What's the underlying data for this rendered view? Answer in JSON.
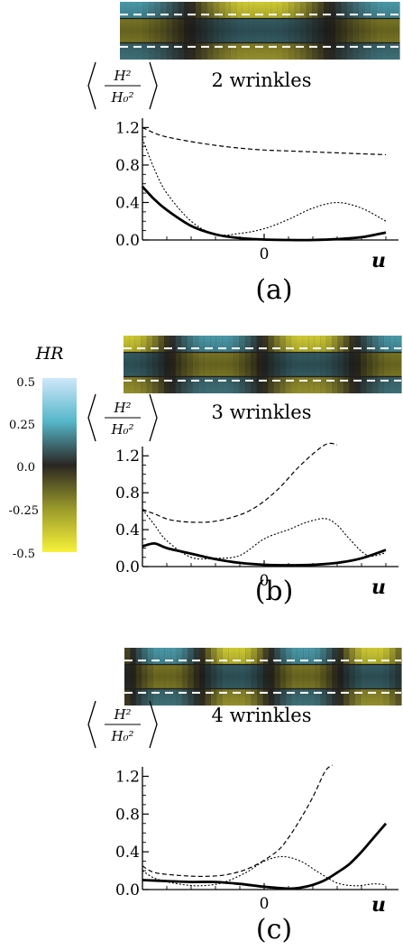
{
  "colorbar": {
    "title": "HR",
    "ticks": [
      "0.5",
      "0.25",
      "0.0",
      "-0.25",
      "-0.5"
    ],
    "colors": {
      "top": "#cfe8fa",
      "upper": "#55b6c9",
      "mid": "#2a2622",
      "lower": "#9a9a2a",
      "bottom": "#f7f23a"
    }
  },
  "panels": [
    {
      "id": "a",
      "strip": {
        "cycles": 1,
        "phase": 0.5
      }
    },
    {
      "id": "b",
      "strip": {
        "cycles": 1.5,
        "phase": 0.0
      }
    },
    {
      "id": "c",
      "strip": {
        "cycles": 2,
        "phase": 0.2
      }
    }
  ],
  "chart_data": [
    {
      "type": "line",
      "title": "2 wrinkles",
      "ylabel": "⟨H²/H₀²⟩",
      "xlabel": "u",
      "panel_label": "(a)",
      "x_ticks": [
        "0"
      ],
      "y_ticks": [
        "0.0",
        "0.4",
        "0.8",
        "1.2"
      ],
      "xlim": [
        -1,
        1
      ],
      "ylim": [
        0,
        1.3
      ],
      "series": [
        {
          "style": "dashed",
          "x": [
            -1,
            -0.9,
            -0.8,
            -0.6,
            -0.4,
            -0.2,
            0,
            0.2,
            0.4,
            0.6,
            0.8,
            1
          ],
          "y": [
            1.2,
            1.14,
            1.1,
            1.05,
            1.01,
            0.98,
            0.96,
            0.95,
            0.94,
            0.93,
            0.92,
            0.91
          ]
        },
        {
          "style": "dotted",
          "x": [
            -1,
            -0.9,
            -0.8,
            -0.6,
            -0.4,
            -0.2,
            0,
            0.2,
            0.4,
            0.6,
            0.8,
            1
          ],
          "y": [
            1.08,
            0.75,
            0.5,
            0.2,
            0.06,
            0.07,
            0.12,
            0.22,
            0.34,
            0.4,
            0.34,
            0.2
          ]
        },
        {
          "style": "solid",
          "x": [
            -1,
            -0.9,
            -0.8,
            -0.6,
            -0.4,
            -0.2,
            0,
            0.2,
            0.4,
            0.6,
            0.8,
            1
          ],
          "y": [
            0.57,
            0.43,
            0.32,
            0.15,
            0.06,
            0.02,
            0.005,
            0.0,
            0.0,
            0.01,
            0.03,
            0.08
          ]
        }
      ]
    },
    {
      "type": "line",
      "title": "3 wrinkles",
      "ylabel": "⟨H²/H₀²⟩",
      "xlabel": "u",
      "panel_label": "(b)",
      "x_ticks": [
        "0"
      ],
      "y_ticks": [
        "0.0",
        "0.4",
        "0.8",
        "1.2"
      ],
      "xlim": [
        -1,
        1
      ],
      "ylim": [
        0,
        1.3
      ],
      "series": [
        {
          "style": "dashed",
          "x": [
            -1,
            -0.9,
            -0.75,
            -0.5,
            -0.3,
            -0.1,
            0.1,
            0.3,
            0.5,
            0.6
          ],
          "y": [
            0.62,
            0.57,
            0.5,
            0.48,
            0.52,
            0.62,
            0.82,
            1.1,
            1.38,
            1.53
          ]
        },
        {
          "style": "dotted",
          "x": [
            -1,
            -0.9,
            -0.8,
            -0.6,
            -0.4,
            -0.2,
            0,
            0.2,
            0.35,
            0.5,
            0.6,
            0.7,
            0.85,
            1
          ],
          "y": [
            0.62,
            0.45,
            0.28,
            0.1,
            0.09,
            0.12,
            0.3,
            0.4,
            0.48,
            0.52,
            0.45,
            0.3,
            0.12,
            0.15
          ]
        },
        {
          "style": "solid",
          "x": [
            -1,
            -0.9,
            -0.8,
            -0.6,
            -0.4,
            -0.2,
            0,
            0.2,
            0.4,
            0.6,
            0.8,
            1
          ],
          "y": [
            0.22,
            0.25,
            0.2,
            0.14,
            0.08,
            0.04,
            0.02,
            0.015,
            0.02,
            0.04,
            0.09,
            0.18
          ]
        }
      ]
    },
    {
      "type": "line",
      "title": "4 wrinkles",
      "ylabel": "⟨H²/H₀²⟩",
      "xlabel": "u",
      "panel_label": "(c)",
      "x_ticks": [
        "0"
      ],
      "y_ticks": [
        "0.0",
        "0.4",
        "0.8",
        "1.2"
      ],
      "xlim": [
        -1,
        1
      ],
      "ylim": [
        0,
        1.3
      ],
      "series": [
        {
          "style": "dashed",
          "x": [
            -1,
            -0.9,
            -0.7,
            -0.5,
            -0.3,
            -0.1,
            0.1,
            0.2,
            0.3,
            0.4,
            0.5,
            0.56
          ],
          "y": [
            0.25,
            0.18,
            0.15,
            0.14,
            0.16,
            0.24,
            0.4,
            0.55,
            0.75,
            0.98,
            1.25,
            1.48
          ]
        },
        {
          "style": "dotted",
          "x": [
            -1,
            -0.9,
            -0.75,
            -0.55,
            -0.35,
            -0.15,
            0,
            0.15,
            0.3,
            0.45,
            0.6,
            0.75,
            0.9,
            1
          ],
          "y": [
            0.2,
            0.12,
            0.07,
            0.04,
            0.07,
            0.18,
            0.3,
            0.35,
            0.3,
            0.18,
            0.07,
            0.04,
            0.06,
            0.05
          ]
        },
        {
          "style": "solid",
          "x": [
            -1,
            -0.8,
            -0.6,
            -0.4,
            -0.2,
            0,
            0.2,
            0.3,
            0.4,
            0.5,
            0.6,
            0.7,
            0.8,
            0.9,
            1
          ],
          "y": [
            0.1,
            0.09,
            0.08,
            0.08,
            0.06,
            0.03,
            0.01,
            0.02,
            0.05,
            0.1,
            0.18,
            0.27,
            0.4,
            0.55,
            0.7
          ]
        }
      ]
    }
  ]
}
